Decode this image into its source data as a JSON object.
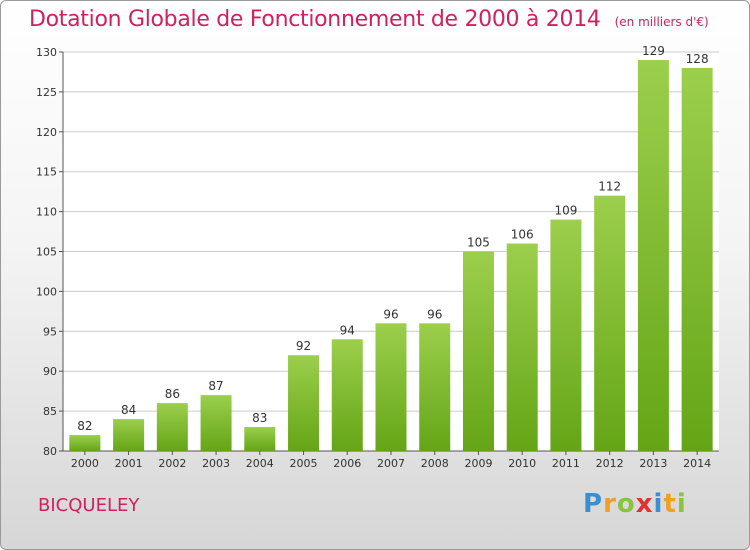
{
  "title": "Dotation Globale de Fonctionnement de 2000 à 2014",
  "subtitle": "(en milliers d'€)",
  "place_name": "BICQUELEY",
  "logo": {
    "text": "Proxiti",
    "letters": [
      {
        "ch": "P",
        "color": "#3a8fd0"
      },
      {
        "ch": "r",
        "color": "#f0a020"
      },
      {
        "ch": "o",
        "color": "#8ac43a"
      },
      {
        "ch": "x",
        "color": "#e03030"
      },
      {
        "ch": "i",
        "color": "#3a8fd0"
      },
      {
        "ch": "t",
        "color": "#f0a020"
      },
      {
        "ch": "i",
        "color": "#8ac43a"
      }
    ]
  },
  "colors": {
    "title": "#d0205e",
    "bar_top": "#9ccf4c",
    "bar_bottom": "#64a516",
    "grid": "#cccccc"
  },
  "chart_data": {
    "type": "bar",
    "categories": [
      "2000",
      "2001",
      "2002",
      "2003",
      "2004",
      "2005",
      "2006",
      "2007",
      "2008",
      "2009",
      "2010",
      "2011",
      "2012",
      "2013",
      "2014"
    ],
    "values": [
      82,
      84,
      86,
      87,
      83,
      92,
      94,
      96,
      96,
      105,
      106,
      109,
      112,
      129,
      128
    ],
    "ylim": [
      80,
      130
    ],
    "yticks": [
      80,
      85,
      90,
      95,
      100,
      105,
      110,
      115,
      120,
      125,
      130
    ],
    "grid": true,
    "legend": "none"
  }
}
